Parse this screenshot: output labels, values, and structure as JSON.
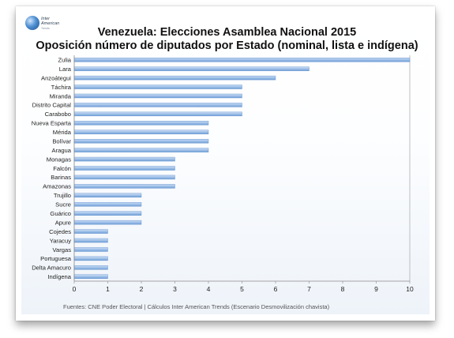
{
  "logo": {
    "line1": "Inter",
    "line2": "American",
    "line3": "Trends"
  },
  "title_line1": "Venezuela: Elecciones Asamblea Nacional 2015",
  "title_line2": "Oposición número de diputados por Estado (nominal, lista e indígena)",
  "source": "Fuentes: CNE Poder Electoral  | Cálculos Inter American Trends (Escenario Desmovilización chavista)",
  "colors": {
    "bar_top": "#c9dcf3",
    "bar_bottom": "#6f9fd6",
    "bar_edge": "#5a8ccc",
    "axis": "#888888",
    "grid": "#b0b0b0"
  },
  "chart_data": {
    "type": "bar",
    "orientation": "horizontal",
    "categories": [
      "Zulia",
      "Lara",
      "Anzoátegui",
      "Táchira",
      "Miranda",
      "Distrito Capital",
      "Carabobo",
      "Nueva Esparta",
      "Mérida",
      "Bolívar",
      "Aragua",
      "Monagas",
      "Falcón",
      "Barinas",
      "Amazonas",
      "Trujillo",
      "Sucre",
      "Guárico",
      "Apure",
      "Cojedes",
      "Yaracuy",
      "Vargas",
      "Portuguesa",
      "Delta Amacuro",
      "Indígena"
    ],
    "values": [
      10,
      7,
      6,
      5,
      5,
      5,
      5,
      4,
      4,
      4,
      4,
      3,
      3,
      3,
      3,
      2,
      2,
      2,
      2,
      1,
      1,
      1,
      1,
      1,
      1
    ],
    "xlim": [
      0,
      10
    ],
    "xticks": [
      "0",
      "1",
      "2",
      "3",
      "4",
      "5",
      "6",
      "7",
      "8",
      "9",
      "10"
    ],
    "title": "Venezuela: Elecciones Asamblea Nacional 2015",
    "subtitle": "Oposición número de diputados por Estado (nominal, lista e indígena)",
    "grid": "vertical gridline at x=10 only",
    "legend": "none"
  }
}
